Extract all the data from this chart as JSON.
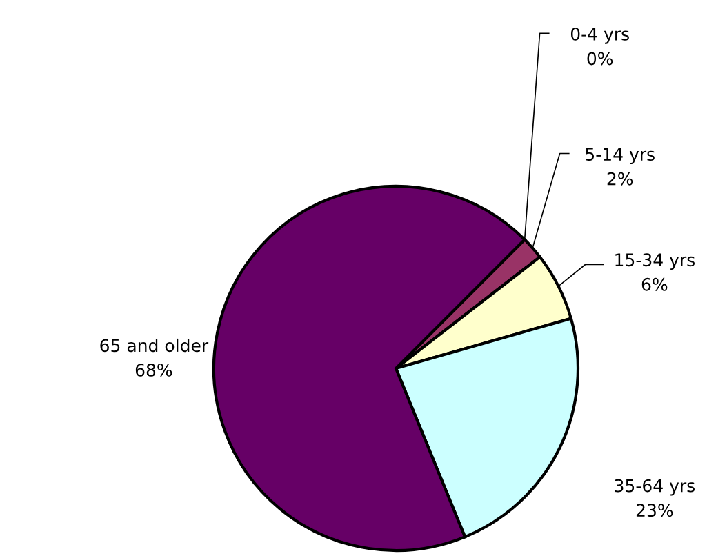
{
  "chart_data": {
    "type": "pie",
    "categories": [
      "0-4 yrs",
      "5-14 yrs",
      "15-34 yrs",
      "35-64 yrs",
      "65 and older"
    ],
    "values": [
      0,
      2,
      6,
      23,
      68
    ],
    "colors": [
      "#330033",
      "#993366",
      "#ffffcc",
      "#ccffff",
      "#660066"
    ],
    "value_labels": [
      "0%",
      "2%",
      "6%",
      "23%",
      "68%"
    ]
  }
}
